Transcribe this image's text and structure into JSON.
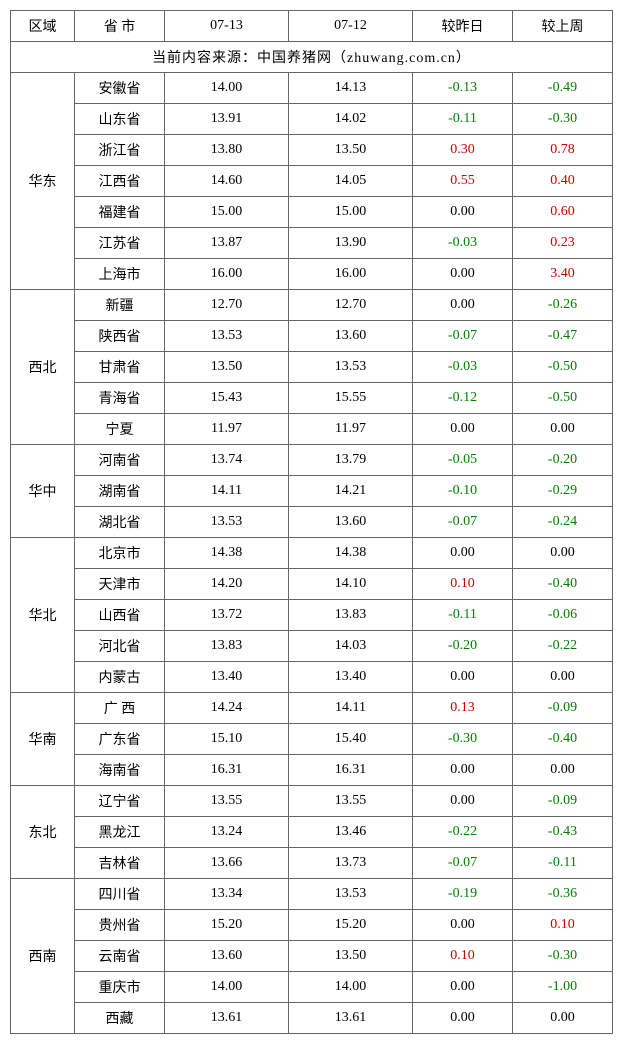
{
  "columns": [
    "区域",
    "省 市",
    "07-13",
    "07-12",
    "较昨日",
    "较上周"
  ],
  "source_text": "当前内容来源：中国养猪网（zhuwang.com.cn）",
  "colors": {
    "negative": "#008000",
    "positive": "#cc0000",
    "zero": "#000000",
    "border": "#666666",
    "background": "#ffffff"
  },
  "regions": [
    {
      "name": "华东",
      "rows": [
        {
          "province": "安徽省",
          "d1": "14.00",
          "d2": "14.13",
          "diff1": "-0.13",
          "diff2": "-0.49"
        },
        {
          "province": "山东省",
          "d1": "13.91",
          "d2": "14.02",
          "diff1": "-0.11",
          "diff2": "-0.30"
        },
        {
          "province": "浙江省",
          "d1": "13.80",
          "d2": "13.50",
          "diff1": "0.30",
          "diff2": "0.78"
        },
        {
          "province": "江西省",
          "d1": "14.60",
          "d2": "14.05",
          "diff1": "0.55",
          "diff2": "0.40"
        },
        {
          "province": "福建省",
          "d1": "15.00",
          "d2": "15.00",
          "diff1": "0.00",
          "diff2": "0.60"
        },
        {
          "province": "江苏省",
          "d1": "13.87",
          "d2": "13.90",
          "diff1": "-0.03",
          "diff2": "0.23"
        },
        {
          "province": "上海市",
          "d1": "16.00",
          "d2": "16.00",
          "diff1": "0.00",
          "diff2": "3.40"
        }
      ]
    },
    {
      "name": "西北",
      "rows": [
        {
          "province": "新疆",
          "d1": "12.70",
          "d2": "12.70",
          "diff1": "0.00",
          "diff2": "-0.26"
        },
        {
          "province": "陕西省",
          "d1": "13.53",
          "d2": "13.60",
          "diff1": "-0.07",
          "diff2": "-0.47"
        },
        {
          "province": "甘肃省",
          "d1": "13.50",
          "d2": "13.53",
          "diff1": "-0.03",
          "diff2": "-0.50"
        },
        {
          "province": "青海省",
          "d1": "15.43",
          "d2": "15.55",
          "diff1": "-0.12",
          "diff2": "-0.50"
        },
        {
          "province": "宁夏",
          "d1": "11.97",
          "d2": "11.97",
          "diff1": "0.00",
          "diff2": "0.00"
        }
      ]
    },
    {
      "name": "华中",
      "rows": [
        {
          "province": "河南省",
          "d1": "13.74",
          "d2": "13.79",
          "diff1": "-0.05",
          "diff2": "-0.20"
        },
        {
          "province": "湖南省",
          "d1": "14.11",
          "d2": "14.21",
          "diff1": "-0.10",
          "diff2": "-0.29"
        },
        {
          "province": "湖北省",
          "d1": "13.53",
          "d2": "13.60",
          "diff1": "-0.07",
          "diff2": "-0.24"
        }
      ]
    },
    {
      "name": "华北",
      "rows": [
        {
          "province": "北京市",
          "d1": "14.38",
          "d2": "14.38",
          "diff1": "0.00",
          "diff2": "0.00"
        },
        {
          "province": "天津市",
          "d1": "14.20",
          "d2": "14.10",
          "diff1": "0.10",
          "diff2": "-0.40"
        },
        {
          "province": "山西省",
          "d1": "13.72",
          "d2": "13.83",
          "diff1": "-0.11",
          "diff2": "-0.06"
        },
        {
          "province": "河北省",
          "d1": "13.83",
          "d2": "14.03",
          "diff1": "-0.20",
          "diff2": "-0.22"
        },
        {
          "province": "内蒙古",
          "d1": "13.40",
          "d2": "13.40",
          "diff1": "0.00",
          "diff2": "0.00"
        }
      ]
    },
    {
      "name": "华南",
      "rows": [
        {
          "province": "广 西",
          "d1": "14.24",
          "d2": "14.11",
          "diff1": "0.13",
          "diff2": "-0.09"
        },
        {
          "province": "广东省",
          "d1": "15.10",
          "d2": "15.40",
          "diff1": "-0.30",
          "diff2": "-0.40"
        },
        {
          "province": "海南省",
          "d1": "16.31",
          "d2": "16.31",
          "diff1": "0.00",
          "diff2": "0.00"
        }
      ]
    },
    {
      "name": "东北",
      "rows": [
        {
          "province": "辽宁省",
          "d1": "13.55",
          "d2": "13.55",
          "diff1": "0.00",
          "diff2": "-0.09"
        },
        {
          "province": "黑龙江",
          "d1": "13.24",
          "d2": "13.46",
          "diff1": "-0.22",
          "diff2": "-0.43"
        },
        {
          "province": "吉林省",
          "d1": "13.66",
          "d2": "13.73",
          "diff1": "-0.07",
          "diff2": "-0.11"
        }
      ]
    },
    {
      "name": "西南",
      "rows": [
        {
          "province": "四川省",
          "d1": "13.34",
          "d2": "13.53",
          "diff1": "-0.19",
          "diff2": "-0.36"
        },
        {
          "province": "贵州省",
          "d1": "15.20",
          "d2": "15.20",
          "diff1": "0.00",
          "diff2": "0.10"
        },
        {
          "province": "云南省",
          "d1": "13.60",
          "d2": "13.50",
          "diff1": "0.10",
          "diff2": "-0.30"
        },
        {
          "province": "重庆市",
          "d1": "14.00",
          "d2": "14.00",
          "diff1": "0.00",
          "diff2": "-1.00"
        },
        {
          "province": "西藏",
          "d1": "13.61",
          "d2": "13.61",
          "diff1": "0.00",
          "diff2": "0.00"
        }
      ]
    }
  ]
}
